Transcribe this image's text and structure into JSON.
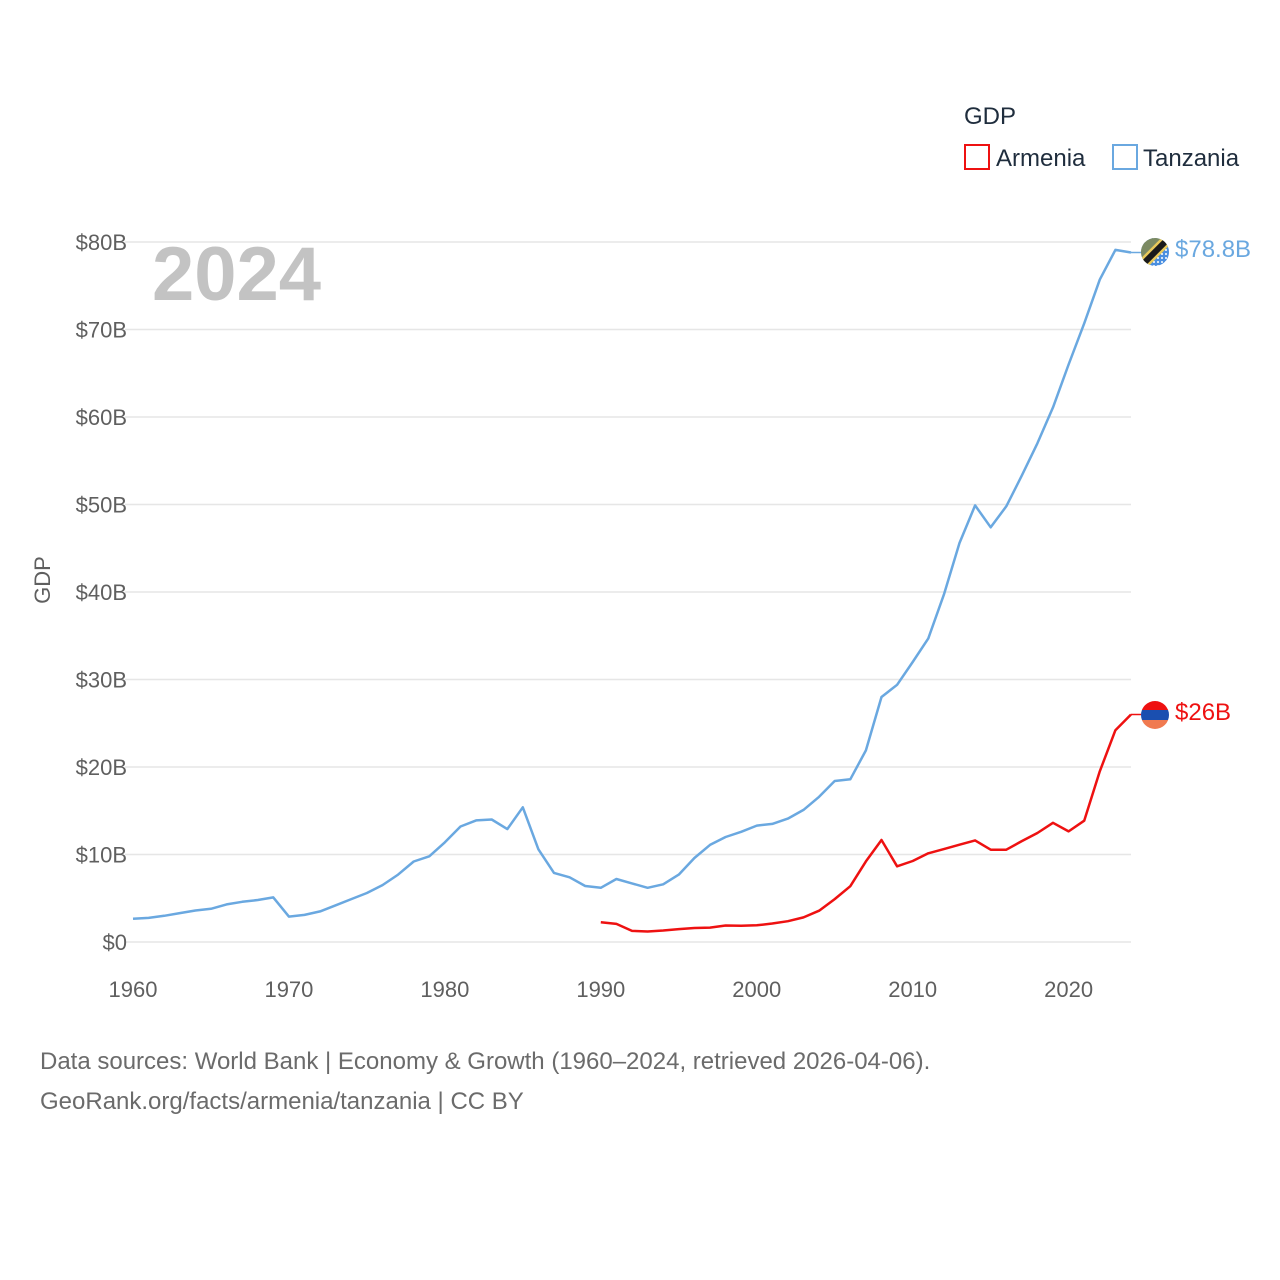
{
  "chart_data": {
    "type": "line",
    "title": "",
    "year_label": "2024",
    "xlabel": "",
    "ylabel": "GDP",
    "xlim": [
      1960,
      2024
    ],
    "ylim": [
      0,
      80
    ],
    "x_ticks": [
      1960,
      1970,
      1980,
      1990,
      2000,
      2010,
      2020
    ],
    "x_tick_labels": [
      "1960",
      "1970",
      "1980",
      "1990",
      "2000",
      "2010",
      "2020"
    ],
    "y_ticks": [
      0,
      10,
      20,
      30,
      40,
      50,
      60,
      70,
      80
    ],
    "y_tick_labels": [
      "$0",
      "$10B",
      "$20B",
      "$30B",
      "$40B",
      "$50B",
      "$60B",
      "$70B",
      "$80B"
    ],
    "grid": true,
    "legend": {
      "title": "GDP",
      "position": "top-right"
    },
    "series": [
      {
        "name": "Armenia",
        "color": "#ee1111",
        "end_label": "$26B",
        "flag": "armenia-flag-icon",
        "x": [
          1990,
          1991,
          1992,
          1993,
          1994,
          1995,
          1996,
          1997,
          1998,
          1999,
          2000,
          2001,
          2002,
          2003,
          2004,
          2005,
          2006,
          2007,
          2008,
          2009,
          2010,
          2011,
          2012,
          2013,
          2014,
          2015,
          2016,
          2017,
          2018,
          2019,
          2020,
          2021,
          2022,
          2023,
          2024
        ],
        "values": [
          2.26,
          2.07,
          1.27,
          1.2,
          1.32,
          1.47,
          1.6,
          1.64,
          1.89,
          1.85,
          1.91,
          2.12,
          2.38,
          2.81,
          3.58,
          4.9,
          6.38,
          9.21,
          11.66,
          8.65,
          9.26,
          10.14,
          10.62,
          11.12,
          11.61,
          10.55,
          10.55,
          11.53,
          12.46,
          13.62,
          12.64,
          13.86,
          19.51,
          24.21,
          26.0
        ]
      },
      {
        "name": "Tanzania",
        "color": "#6aa8e0",
        "end_label": "$78.8B",
        "flag": "tanzania-flag-icon",
        "x": [
          1960,
          1961,
          1962,
          1963,
          1964,
          1965,
          1966,
          1967,
          1968,
          1969,
          1970,
          1971,
          1972,
          1973,
          1974,
          1975,
          1976,
          1977,
          1978,
          1979,
          1980,
          1981,
          1982,
          1983,
          1984,
          1985,
          1986,
          1987,
          1988,
          1989,
          1990,
          1991,
          1992,
          1993,
          1994,
          1995,
          1996,
          1997,
          1998,
          1999,
          2000,
          2001,
          2002,
          2003,
          2004,
          2005,
          2006,
          2007,
          2008,
          2009,
          2010,
          2011,
          2012,
          2013,
          2014,
          2015,
          2016,
          2017,
          2018,
          2019,
          2020,
          2021,
          2022,
          2023,
          2024
        ],
        "values": [
          2.65,
          2.75,
          3.0,
          3.3,
          3.6,
          3.8,
          4.3,
          4.6,
          4.8,
          5.1,
          2.9,
          3.1,
          3.5,
          4.2,
          4.9,
          5.6,
          6.5,
          7.7,
          9.2,
          9.8,
          11.4,
          13.2,
          13.9,
          14.0,
          12.9,
          15.4,
          10.6,
          7.9,
          7.4,
          6.4,
          6.2,
          7.2,
          6.7,
          6.2,
          6.6,
          7.7,
          9.6,
          11.1,
          12.0,
          12.6,
          13.3,
          13.5,
          14.1,
          15.1,
          16.6,
          18.4,
          18.6,
          21.9,
          28.0,
          29.4,
          32.0,
          34.7,
          39.7,
          45.6,
          49.9,
          47.4,
          49.8,
          53.3,
          57.0,
          61.1,
          66.0,
          70.7,
          75.7,
          79.1,
          78.8
        ]
      }
    ]
  },
  "footer": {
    "line1": "Data sources: World Bank | Economy & Growth (1960–2024, retrieved 2026-04-06).",
    "line2": "GeoRank.org/facts/armenia/tanzania | CC BY"
  }
}
